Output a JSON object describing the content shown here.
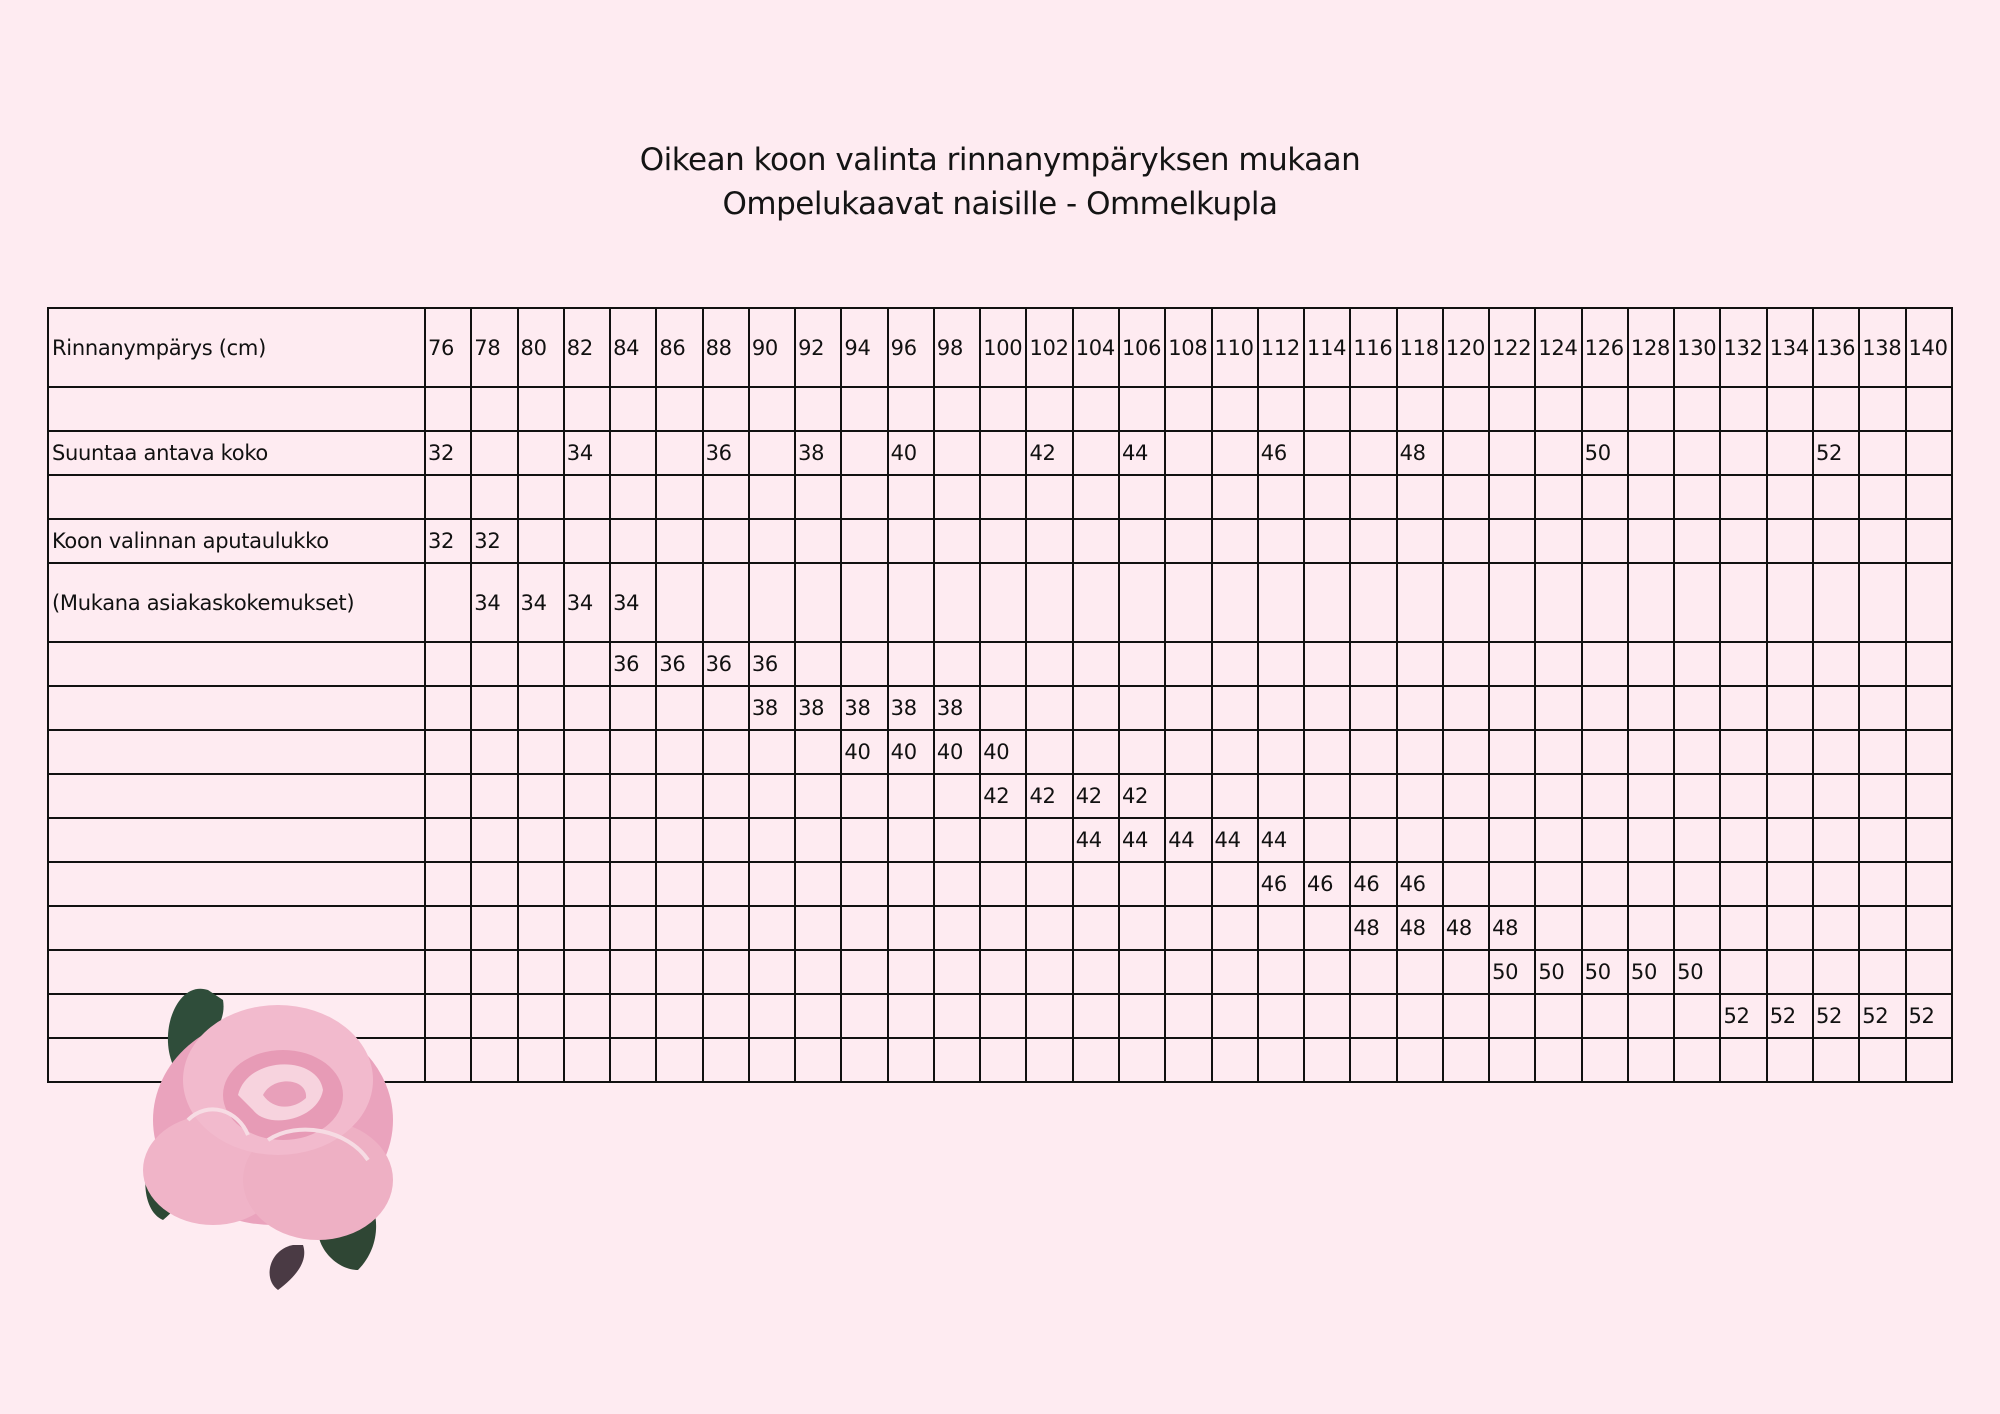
{
  "title": {
    "line1": "Oikean koon valinta rinnanympäryksen mukaan",
    "line2": "Ompelukaavat naisille - Ommelkupla"
  },
  "table": {
    "columns": [
      "76",
      "78",
      "80",
      "82",
      "84",
      "86",
      "88",
      "90",
      "92",
      "94",
      "96",
      "98",
      "100",
      "102",
      "104",
      "106",
      "108",
      "110",
      "112",
      "114",
      "116",
      "118",
      "120",
      "122",
      "124",
      "126",
      "128",
      "130",
      "132",
      "134",
      "136",
      "138",
      "140"
    ],
    "header_label": "Rinnanympärys (cm)",
    "rows": [
      {
        "label": "",
        "cells": {}
      },
      {
        "label": "Suuntaa antava koko",
        "cells": {
          "76": "32",
          "82": "34",
          "88": "36",
          "92": "38",
          "96": "40",
          "102": "42",
          "106": "44",
          "112": "46",
          "118": "48",
          "126": "50",
          "136": "52"
        }
      },
      {
        "label": "",
        "cells": {}
      },
      {
        "label": "Koon valinnan aputaulukko",
        "cells": {
          "76": "32",
          "78": "32"
        }
      },
      {
        "label": "(Mukana asiakaskokemukset)",
        "tall": true,
        "cells": {
          "78": "34",
          "80": "34",
          "82": "34",
          "84": "34"
        }
      },
      {
        "label": "",
        "cells": {
          "84": "36",
          "86": "36",
          "88": "36",
          "90": "36"
        }
      },
      {
        "label": "",
        "cells": {
          "90": "38",
          "92": "38",
          "94": "38",
          "96": "38",
          "98": "38"
        }
      },
      {
        "label": "",
        "cells": {
          "94": "40",
          "96": "40",
          "98": "40",
          "100": "40"
        }
      },
      {
        "label": "",
        "cells": {
          "100": "42",
          "102": "42",
          "104": "42",
          "106": "42"
        }
      },
      {
        "label": "",
        "cells": {
          "104": "44",
          "106": "44",
          "108": "44",
          "110": "44",
          "112": "44"
        }
      },
      {
        "label": "",
        "cells": {
          "112": "46",
          "114": "46",
          "116": "46",
          "118": "46"
        }
      },
      {
        "label": "",
        "cells": {
          "116": "48",
          "118": "48",
          "120": "48",
          "122": "48"
        }
      },
      {
        "label": "",
        "cells": {
          "122": "50",
          "124": "50",
          "126": "50",
          "128": "50",
          "130": "50"
        }
      },
      {
        "label": "",
        "cells": {
          "132": "52",
          "134": "52",
          "136": "52",
          "138": "52",
          "140": "52"
        }
      },
      {
        "label": "",
        "cells": {}
      }
    ]
  },
  "decoration": {
    "image": "pink-rose-illustration",
    "colors": {
      "petal": "#eaa6bf",
      "leaf": "#2f4a36",
      "background": "#feebf1"
    }
  }
}
